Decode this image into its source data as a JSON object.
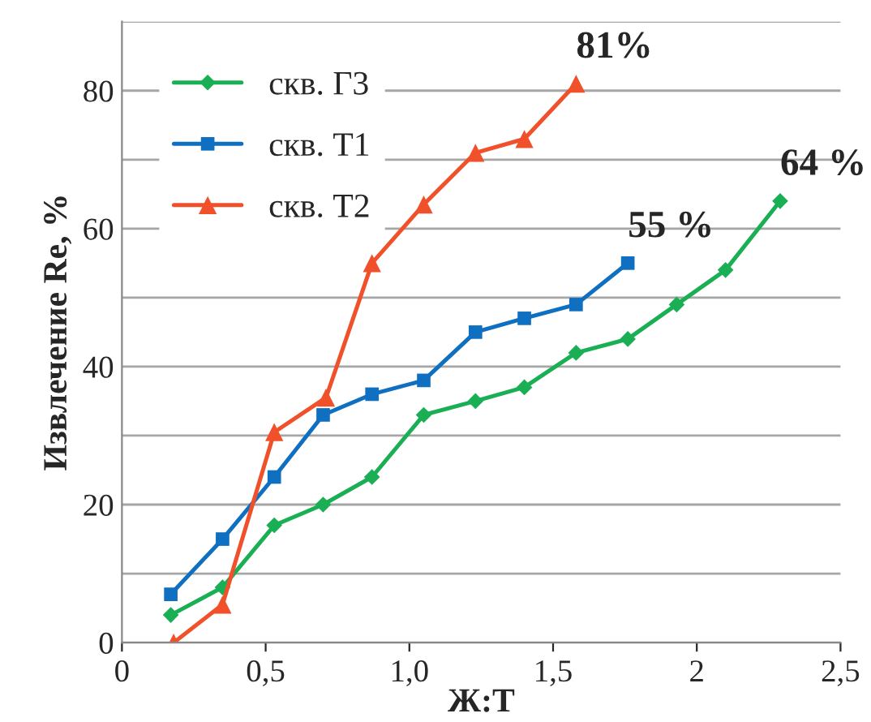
{
  "chart_data": {
    "type": "line",
    "xlabel": "Ж:Т",
    "ylabel": "Извлечение Re, %",
    "xlim": [
      0,
      2.5
    ],
    "xticks": [
      0,
      {
        "value": 0.5,
        "label": "0,5"
      },
      {
        "value": 1.0,
        "label": "1,0"
      },
      {
        "value": 1.5,
        "label": "1,5"
      },
      2,
      {
        "value": 2.5,
        "label": "2,5"
      }
    ],
    "ylim": [
      0,
      90
    ],
    "yticks": [
      0,
      {
        "value": 10,
        "label": null
      },
      20,
      {
        "value": 30,
        "label": null
      },
      40,
      {
        "value": 50,
        "label": null
      },
      60,
      {
        "value": 70,
        "label": null
      },
      80,
      {
        "value": 90,
        "label": null
      }
    ],
    "grid": "y",
    "legend": "top left",
    "line_style": "solid",
    "series": [
      {
        "name": "скв. Г3",
        "color": "#1aaf54",
        "marker": "diamond",
        "x": [
          0.17,
          0.35,
          0.53,
          0.7,
          0.87,
          1.05,
          1.23,
          1.4,
          1.58,
          1.76,
          1.93,
          2.1,
          2.29
        ],
        "values": [
          4,
          8,
          17,
          20,
          24,
          33,
          35,
          37,
          42,
          44,
          49,
          54,
          64
        ]
      },
      {
        "name": "скв. Т1",
        "color": "#0f6fc0",
        "marker": "square",
        "x": [
          0.17,
          0.35,
          0.53,
          0.7,
          0.87,
          1.05,
          1.23,
          1.4,
          1.58,
          1.76
        ],
        "values": [
          7,
          15,
          24,
          33,
          36,
          38,
          45,
          47,
          49,
          55
        ]
      },
      {
        "name": "скв. Т2",
        "color": "#f0502a",
        "marker": "triangle",
        "x": [
          0.18,
          0.35,
          0.53,
          0.71,
          0.87,
          1.05,
          1.23,
          1.4,
          1.58
        ],
        "values": [
          0,
          5.5,
          30.5,
          35.5,
          55,
          63.5,
          71,
          73,
          81
        ]
      }
    ],
    "annotations": [
      {
        "text": "81%",
        "x": 1.58,
        "y": 81
      },
      {
        "text": "55 %",
        "x": 1.76,
        "y": 55
      },
      {
        "text": "64 %",
        "x": 2.29,
        "y": 64
      }
    ]
  }
}
